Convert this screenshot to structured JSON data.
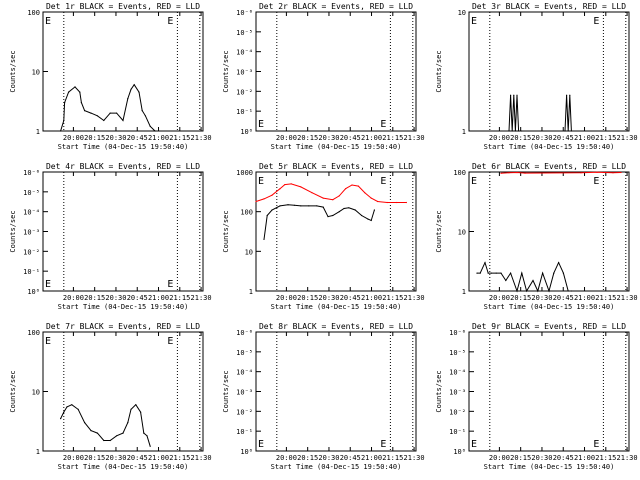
{
  "colors": {
    "events": "#000000",
    "lld": "#ff0000",
    "background": "#ffffff"
  },
  "common": {
    "xlabel": "Start Time (04-Dec-15 19:50:40)",
    "xticks": [
      "20:00",
      "20:15",
      "20:30",
      "20:45",
      "21:00",
      "21:15",
      "21:30"
    ],
    "ylabel": "Counts/sec",
    "marker": "E"
  },
  "chart_data": [
    {
      "type": "line",
      "title": "Det 1r BLACK = Events, RED = LLD",
      "scale": "log",
      "ylim": [
        1,
        100
      ],
      "yticks": [
        "1",
        "10",
        "100"
      ],
      "series": [
        {
          "name": "Events",
          "color": "#000000",
          "x": [
            0.11,
            0.13,
            0.135,
            0.16,
            0.2,
            0.23,
            0.24,
            0.26,
            0.3,
            0.34,
            0.38,
            0.42,
            0.46,
            0.5,
            0.53,
            0.55,
            0.57,
            0.6,
            0.62,
            0.64,
            0.67,
            0.7
          ],
          "y": [
            1,
            1.5,
            3.0,
            4.5,
            5.5,
            4.5,
            3.0,
            2.2,
            2.0,
            1.8,
            1.5,
            2.0,
            2.0,
            1.5,
            3.5,
            5.0,
            6.0,
            4.5,
            2.2,
            1.8,
            1.2,
            1
          ]
        }
      ]
    },
    {
      "type": "line",
      "title": "Det 2r BLACK = Events, RED = LLD",
      "scale": "log",
      "ylim": [
        1e-06,
        1
      ],
      "yticks": [
        "10⁰",
        "10⁻¹",
        "10⁻²",
        "10⁻³",
        "10⁻⁴",
        "10⁻⁵",
        "10⁻⁶"
      ],
      "series": []
    },
    {
      "type": "line",
      "title": "Det 3r BLACK = Events, RED = LLD",
      "scale": "log",
      "ylim": [
        1,
        10
      ],
      "yticks": [
        "1",
        "10"
      ],
      "series": [
        {
          "name": "Events",
          "color": "#000000",
          "x": [
            0.25,
            0.26,
            0.27,
            0.28,
            0.29,
            0.3,
            0.31,
            0.33,
            0.6,
            0.61,
            0.62,
            0.63,
            0.64
          ],
          "y": [
            1,
            2,
            1,
            2,
            1,
            2,
            1,
            1,
            1,
            2,
            1,
            2,
            1
          ]
        }
      ]
    },
    {
      "type": "line",
      "title": "Det 4r BLACK = Events, RED = LLD",
      "scale": "log",
      "ylim": [
        1e-06,
        1
      ],
      "yticks": [
        "10⁰",
        "10⁻¹",
        "10⁻²",
        "10⁻³",
        "10⁻⁴",
        "10⁻⁵",
        "10⁻⁶"
      ],
      "series": []
    },
    {
      "type": "line",
      "title": "Det 5r BLACK = Events, RED = LLD",
      "scale": "log",
      "ylim": [
        1,
        1000
      ],
      "yticks": [
        "1",
        "10",
        "100",
        "1000"
      ],
      "series": [
        {
          "name": "LLD",
          "color": "#ff0000",
          "x": [
            0.0,
            0.05,
            0.1,
            0.15,
            0.18,
            0.22,
            0.28,
            0.35,
            0.42,
            0.48,
            0.52,
            0.56,
            0.6,
            0.64,
            0.68,
            0.72,
            0.76,
            0.82,
            0.88,
            0.94
          ],
          "y": [
            180,
            210,
            260,
            380,
            480,
            500,
            420,
            300,
            220,
            200,
            250,
            380,
            470,
            440,
            300,
            220,
            180,
            170,
            170,
            170
          ]
        },
        {
          "name": "Events",
          "color": "#000000",
          "x": [
            0.05,
            0.07,
            0.1,
            0.15,
            0.2,
            0.24,
            0.28,
            0.33,
            0.38,
            0.42,
            0.45,
            0.48,
            0.52,
            0.55,
            0.58,
            0.62,
            0.66,
            0.7,
            0.72,
            0.74
          ],
          "y": [
            20,
            80,
            110,
            140,
            150,
            145,
            140,
            140,
            140,
            130,
            75,
            80,
            100,
            120,
            125,
            110,
            80,
            65,
            60,
            110
          ]
        }
      ]
    },
    {
      "type": "line",
      "title": "Det 6r BLACK = Events, RED = LLD",
      "scale": "log",
      "ylim": [
        1,
        100
      ],
      "yticks": [
        "1",
        "10",
        "100"
      ],
      "series": [
        {
          "name": "LLD",
          "color": "#ff0000",
          "x": [
            0.2,
            0.25,
            0.3,
            0.35,
            0.7,
            0.75,
            0.8,
            0.85,
            0.9,
            0.95
          ],
          "y": [
            95,
            97,
            98,
            96,
            97,
            98,
            99,
            98,
            97,
            98
          ]
        },
        {
          "name": "Events",
          "color": "#000000",
          "x": [
            0.05,
            0.07,
            0.1,
            0.12,
            0.14,
            0.17,
            0.2,
            0.23,
            0.26,
            0.3,
            0.33,
            0.36,
            0.4,
            0.43,
            0.46,
            0.5,
            0.53,
            0.56,
            0.59,
            0.62,
            0.64
          ],
          "y": [
            2,
            2,
            3,
            2,
            2,
            2,
            2,
            1.5,
            2,
            1,
            2,
            1,
            1.5,
            1,
            2,
            1,
            2,
            3,
            2,
            1,
            1
          ]
        }
      ]
    },
    {
      "type": "line",
      "title": "Det 7r BLACK = Events, RED = LLD",
      "scale": "log",
      "ylim": [
        1,
        100
      ],
      "yticks": [
        "1",
        "10",
        "100"
      ],
      "series": [
        {
          "name": "Events",
          "color": "#000000",
          "x": [
            0.11,
            0.13,
            0.15,
            0.18,
            0.22,
            0.26,
            0.3,
            0.34,
            0.38,
            0.42,
            0.46,
            0.5,
            0.53,
            0.55,
            0.58,
            0.61,
            0.63,
            0.65,
            0.67
          ],
          "y": [
            3.5,
            4.5,
            5.5,
            6.0,
            5.0,
            3.0,
            2.2,
            2.0,
            1.5,
            1.5,
            1.8,
            2.0,
            3.0,
            5.0,
            6.0,
            4.5,
            2.0,
            1.8,
            1.2
          ]
        }
      ]
    },
    {
      "type": "line",
      "title": "Det 8r BLACK = Events, RED = LLD",
      "scale": "log",
      "ylim": [
        1e-06,
        1
      ],
      "yticks": [
        "10⁰",
        "10⁻¹",
        "10⁻²",
        "10⁻³",
        "10⁻⁴",
        "10⁻⁵",
        "10⁻⁶"
      ],
      "series": []
    },
    {
      "type": "line",
      "title": "Det 9r BLACK = Events, RED = LLD",
      "scale": "log",
      "ylim": [
        1e-06,
        1
      ],
      "yticks": [
        "10⁰",
        "10⁻¹",
        "10⁻²",
        "10⁻³",
        "10⁻⁴",
        "10⁻⁵",
        "10⁻⁶"
      ],
      "series": []
    }
  ]
}
